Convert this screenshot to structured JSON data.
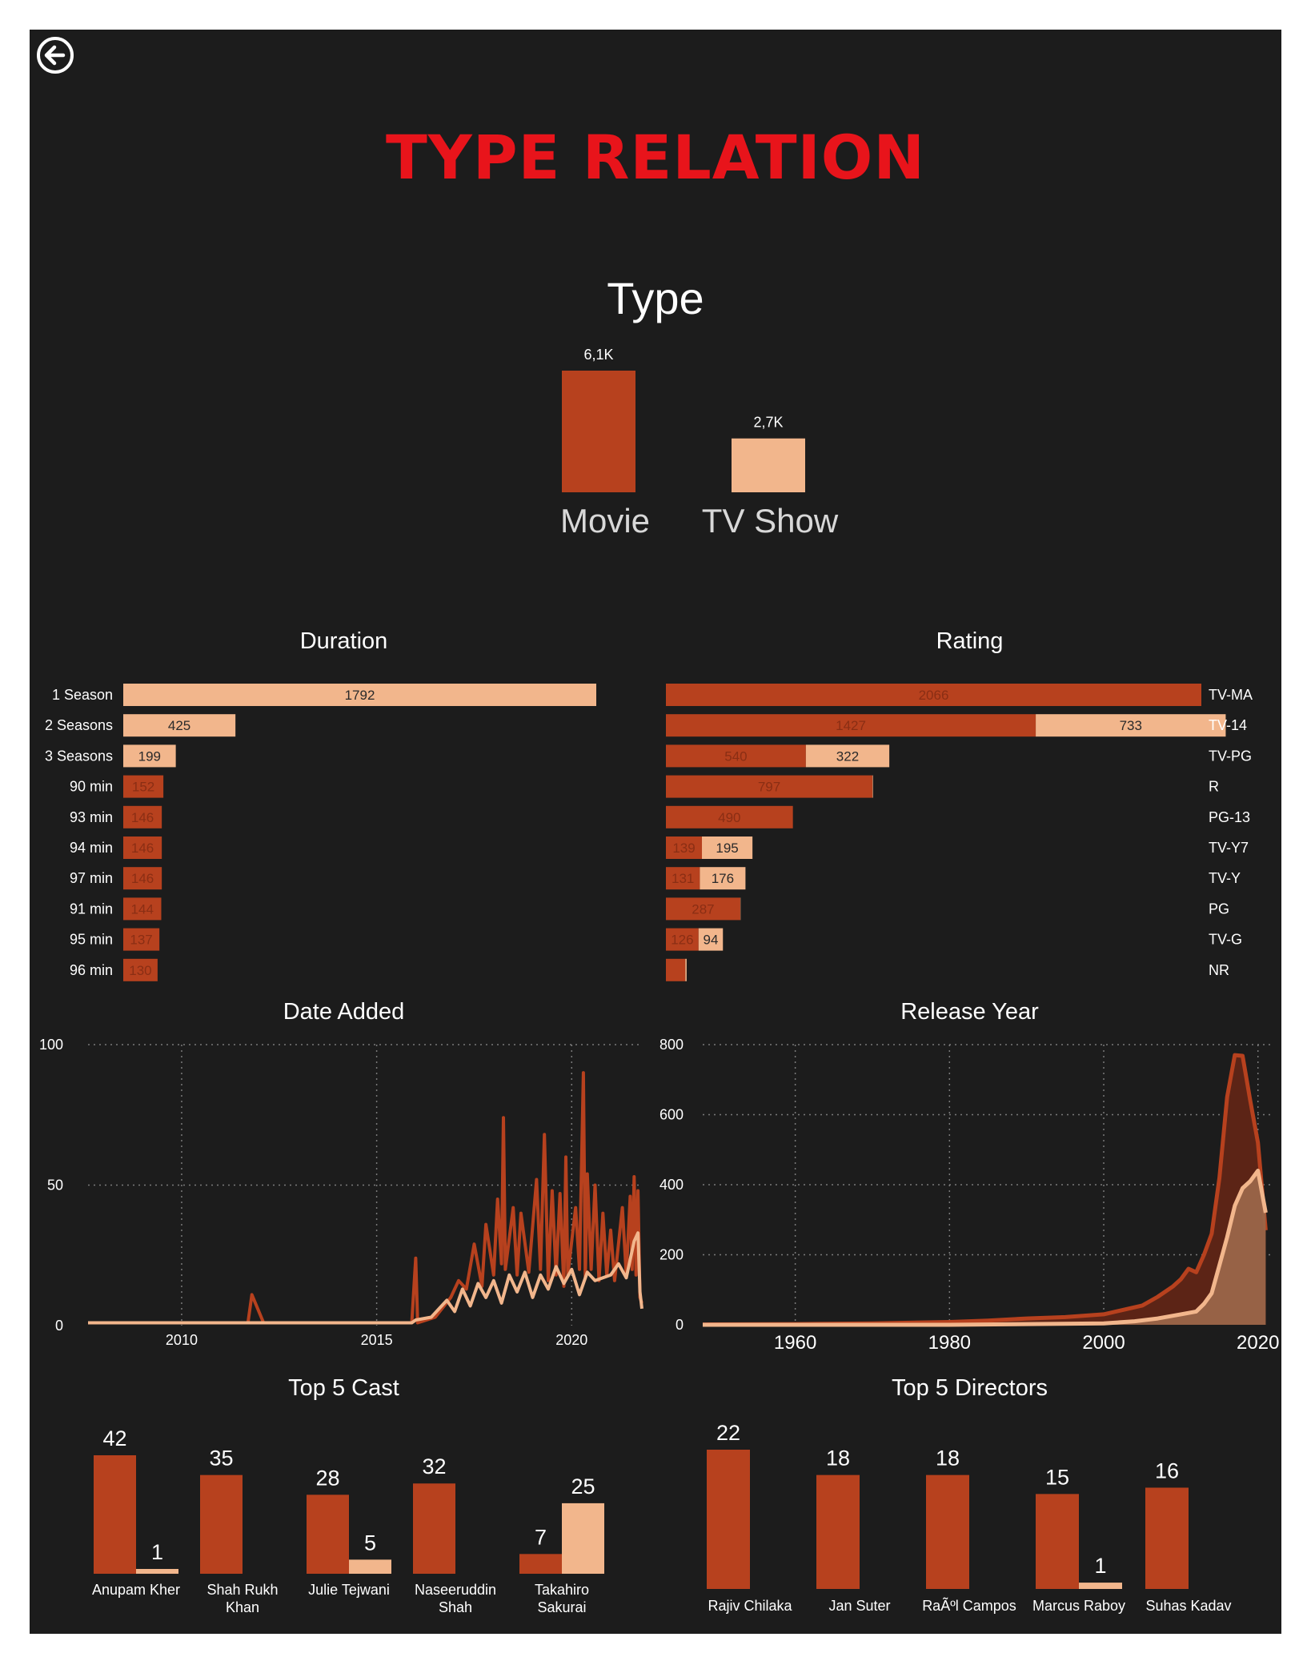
{
  "page": {
    "title": "TYPE RELATION",
    "back_icon": "back-arrow-icon",
    "colors": {
      "background": "#1c1c1c",
      "title": "#e8141b",
      "movie": "#b7411e",
      "tv_show": "#f2b68c",
      "movie_dark_area": "#5c2416",
      "tv_area": "#9a6649"
    }
  },
  "chart_data": [
    {
      "id": "type",
      "type": "bar",
      "title": "Type",
      "categories": [
        "Movie",
        "TV Show"
      ],
      "values": [
        6100,
        2700
      ],
      "value_labels": [
        "6,1K",
        "2,7K"
      ]
    },
    {
      "id": "duration",
      "type": "bar",
      "orientation": "horizontal",
      "title": "Duration",
      "categories": [
        "1 Season",
        "2 Seasons",
        "3 Seasons",
        "90 min",
        "93 min",
        "94 min",
        "97 min",
        "91 min",
        "95 min",
        "96 min"
      ],
      "series": [
        {
          "name": "Movie",
          "values": [
            0,
            0,
            0,
            152,
            146,
            146,
            146,
            144,
            137,
            130
          ]
        },
        {
          "name": "TV Show",
          "values": [
            1792,
            425,
            199,
            0,
            0,
            0,
            0,
            0,
            0,
            0
          ]
        }
      ]
    },
    {
      "id": "rating",
      "type": "bar",
      "orientation": "horizontal",
      "stacked": true,
      "title": "Rating",
      "categories": [
        "TV-MA",
        "TV-14",
        "TV-PG",
        "R",
        "PG-13",
        "TV-Y7",
        "TV-Y",
        "PG",
        "TV-G",
        "NR"
      ],
      "series": [
        {
          "name": "Movie",
          "values": [
            2066,
            1427,
            540,
            797,
            490,
            139,
            131,
            287,
            126,
            75
          ],
          "labels": [
            "2066",
            "1427",
            "540",
            "797",
            "490",
            "139",
            "131",
            "287",
            "126",
            ""
          ]
        },
        {
          "name": "TV Show",
          "values": [
            0,
            733,
            322,
            2,
            0,
            195,
            176,
            1,
            94,
            5
          ],
          "labels": [
            "",
            "733",
            "322",
            "",
            "",
            "195",
            "176",
            "",
            "94",
            ""
          ]
        }
      ]
    },
    {
      "id": "date_added",
      "type": "line",
      "title": "Date Added",
      "xlim": [
        2007.6,
        2021.8
      ],
      "ylim": [
        0,
        100
      ],
      "x_ticks": [
        "2010",
        "2015",
        "2020"
      ],
      "y_ticks": [
        "0",
        "50",
        "100"
      ],
      "grid": true,
      "series": [
        {
          "name": "Movie",
          "points": [
            [
              2007.6,
              1
            ],
            [
              2011.7,
              1
            ],
            [
              2011.8,
              11
            ],
            [
              2012.1,
              1
            ],
            [
              2015.9,
              1
            ],
            [
              2016.0,
              24
            ],
            [
              2016.05,
              1
            ],
            [
              2016.5,
              3
            ],
            [
              2016.9,
              10
            ],
            [
              2017.1,
              16
            ],
            [
              2017.3,
              13
            ],
            [
              2017.5,
              29
            ],
            [
              2017.7,
              14
            ],
            [
              2017.8,
              36
            ],
            [
              2018.0,
              18
            ],
            [
              2018.1,
              45
            ],
            [
              2018.2,
              22
            ],
            [
              2018.25,
              74
            ],
            [
              2018.3,
              20
            ],
            [
              2018.5,
              42
            ],
            [
              2018.6,
              18
            ],
            [
              2018.7,
              40
            ],
            [
              2018.9,
              19
            ],
            [
              2019.1,
              52
            ],
            [
              2019.2,
              20
            ],
            [
              2019.3,
              68
            ],
            [
              2019.4,
              16
            ],
            [
              2019.5,
              48
            ],
            [
              2019.6,
              18
            ],
            [
              2019.7,
              47
            ],
            [
              2019.8,
              14
            ],
            [
              2019.85,
              60
            ],
            [
              2019.9,
              18
            ],
            [
              2020.1,
              42
            ],
            [
              2020.2,
              20
            ],
            [
              2020.3,
              90
            ],
            [
              2020.35,
              17
            ],
            [
              2020.4,
              54
            ],
            [
              2020.5,
              20
            ],
            [
              2020.6,
              50
            ],
            [
              2020.7,
              16
            ],
            [
              2020.8,
              40
            ],
            [
              2020.9,
              18
            ],
            [
              2021.0,
              34
            ],
            [
              2021.1,
              16
            ],
            [
              2021.3,
              42
            ],
            [
              2021.4,
              18
            ],
            [
              2021.5,
              46
            ],
            [
              2021.55,
              20
            ],
            [
              2021.6,
              53
            ],
            [
              2021.65,
              18
            ],
            [
              2021.7,
              48
            ],
            [
              2021.75,
              10
            ],
            [
              2021.8,
              8
            ]
          ]
        },
        {
          "name": "TV Show",
          "points": [
            [
              2007.6,
              1
            ],
            [
              2015.9,
              1
            ],
            [
              2016.0,
              2
            ],
            [
              2016.4,
              3
            ],
            [
              2016.6,
              6
            ],
            [
              2016.8,
              9
            ],
            [
              2017.0,
              5
            ],
            [
              2017.2,
              13
            ],
            [
              2017.4,
              7
            ],
            [
              2017.6,
              15
            ],
            [
              2017.8,
              10
            ],
            [
              2018.0,
              16
            ],
            [
              2018.2,
              8
            ],
            [
              2018.4,
              18
            ],
            [
              2018.6,
              12
            ],
            [
              2018.8,
              19
            ],
            [
              2019.0,
              10
            ],
            [
              2019.2,
              18
            ],
            [
              2019.4,
              13
            ],
            [
              2019.6,
              21
            ],
            [
              2019.8,
              15
            ],
            [
              2020.0,
              20
            ],
            [
              2020.2,
              11
            ],
            [
              2020.4,
              19
            ],
            [
              2020.6,
              16
            ],
            [
              2020.8,
              17
            ],
            [
              2021.0,
              18
            ],
            [
              2021.2,
              22
            ],
            [
              2021.4,
              17
            ],
            [
              2021.6,
              30
            ],
            [
              2021.7,
              33
            ],
            [
              2021.75,
              12
            ],
            [
              2021.8,
              6
            ]
          ]
        }
      ]
    },
    {
      "id": "release_year",
      "type": "area",
      "title": "Release Year",
      "xlim": [
        1948,
        2022
      ],
      "ylim": [
        0,
        800
      ],
      "x_ticks": [
        "1960",
        "1980",
        "2000",
        "2020"
      ],
      "y_ticks": [
        "0",
        "200",
        "400",
        "600",
        "800"
      ],
      "grid": true,
      "series": [
        {
          "name": "Movie",
          "points": [
            [
              1948,
              1
            ],
            [
              1960,
              2
            ],
            [
              1970,
              4
            ],
            [
              1980,
              8
            ],
            [
              1985,
              12
            ],
            [
              1990,
              18
            ],
            [
              1995,
              22
            ],
            [
              2000,
              30
            ],
            [
              2003,
              45
            ],
            [
              2005,
              55
            ],
            [
              2007,
              80
            ],
            [
              2009,
              110
            ],
            [
              2010,
              130
            ],
            [
              2011,
              160
            ],
            [
              2012,
              150
            ],
            [
              2013,
              200
            ],
            [
              2014,
              260
            ],
            [
              2015,
              420
            ],
            [
              2016,
              650
            ],
            [
              2017,
              770
            ],
            [
              2018,
              768
            ],
            [
              2019,
              640
            ],
            [
              2020,
              520
            ],
            [
              2021,
              270
            ]
          ]
        },
        {
          "name": "TV Show",
          "points": [
            [
              1948,
              0
            ],
            [
              1960,
              0
            ],
            [
              1980,
              0
            ],
            [
              1990,
              2
            ],
            [
              2000,
              4
            ],
            [
              2004,
              10
            ],
            [
              2007,
              18
            ],
            [
              2010,
              30
            ],
            [
              2012,
              38
            ],
            [
              2013,
              60
            ],
            [
              2014,
              90
            ],
            [
              2015,
              170
            ],
            [
              2016,
              250
            ],
            [
              2017,
              340
            ],
            [
              2018,
              390
            ],
            [
              2019,
              410
            ],
            [
              2020,
              440
            ],
            [
              2021,
              320
            ]
          ]
        }
      ]
    },
    {
      "id": "top_cast",
      "type": "bar",
      "title": "Top 5 Cast",
      "categories": [
        "Anupam Kher",
        "Shah Rukh Khan",
        "Julie Tejwani",
        "Naseeruddin Shah",
        "Takahiro Sakurai"
      ],
      "category_lines": [
        [
          "Anupam Kher"
        ],
        [
          "Shah Rukh",
          "Khan"
        ],
        [
          "Julie Tejwani"
        ],
        [
          "Naseeruddin",
          "Shah"
        ],
        [
          "Takahiro",
          "Sakurai"
        ]
      ],
      "series": [
        {
          "name": "Movie",
          "values": [
            42,
            35,
            28,
            32,
            7
          ]
        },
        {
          "name": "TV Show",
          "values": [
            1,
            null,
            5,
            null,
            25
          ]
        }
      ]
    },
    {
      "id": "top_directors",
      "type": "bar",
      "title": "Top 5 Directors",
      "categories": [
        "Rajiv Chilaka",
        "Jan Suter",
        "RaÃºl Campos",
        "Marcus Raboy",
        "Suhas Kadav"
      ],
      "series": [
        {
          "name": "Movie",
          "values": [
            22,
            18,
            18,
            15,
            16
          ]
        },
        {
          "name": "TV Show",
          "values": [
            null,
            null,
            null,
            1,
            null
          ]
        }
      ]
    }
  ]
}
